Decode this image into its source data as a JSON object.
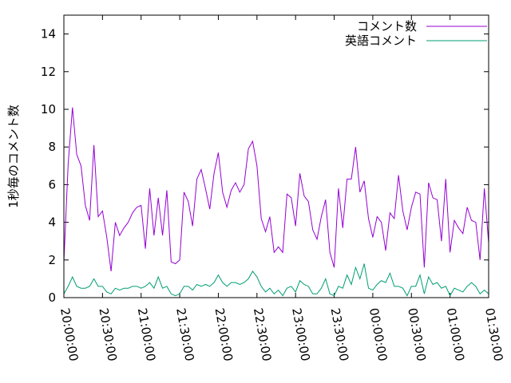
{
  "chart_data": {
    "type": "line",
    "title": "",
    "xlabel": "",
    "ylabel": "1秒毎のコメント数",
    "ylim": [
      0,
      15
    ],
    "xlim": [
      "20:00:00",
      "01:30:00"
    ],
    "yticks": [
      "0",
      "2",
      "4",
      "6",
      "8",
      "10",
      "12",
      "14"
    ],
    "xticks": [
      "20:00:00",
      "20:30:00",
      "21:00:00",
      "21:30:00",
      "22:00:00",
      "22:30:00",
      "23:00:00",
      "23:30:00",
      "00:00:00",
      "00:30:00",
      "01:00:00",
      "01:30:00"
    ],
    "grid": false,
    "legend_position": "top-right",
    "series": [
      {
        "name": "コメント数",
        "color": "#9400d3",
        "values": [
          1.9,
          7.1,
          10.1,
          7.6,
          7.0,
          4.9,
          4.1,
          8.1,
          4.3,
          4.6,
          3.2,
          1.4,
          4.0,
          3.3,
          3.7,
          4.0,
          4.5,
          4.8,
          4.9,
          2.6,
          5.8,
          3.3,
          5.3,
          3.3,
          5.7,
          1.9,
          1.8,
          2.0,
          5.6,
          5.1,
          3.8,
          6.3,
          6.8,
          5.8,
          4.7,
          6.6,
          7.7,
          5.6,
          4.8,
          5.7,
          6.1,
          5.6,
          6.0,
          7.9,
          8.3,
          7.0,
          4.2,
          3.5,
          4.3,
          2.4,
          2.7,
          2.4,
          5.5,
          5.3,
          3.8,
          6.6,
          5.4,
          5.1,
          3.6,
          3.1,
          4.3,
          5.2,
          2.4,
          1.6,
          5.8,
          3.7,
          6.3,
          6.3,
          8.0,
          5.6,
          6.2,
          4.2,
          3.2,
          4.3,
          4.0,
          2.5,
          4.5,
          4.2,
          6.5,
          4.6,
          3.6,
          4.8,
          5.6,
          5.5,
          1.6,
          6.1,
          5.3,
          5.2,
          3.0,
          6.3,
          2.4,
          4.1,
          3.7,
          3.4,
          4.8,
          4.1,
          4.0,
          2.0,
          5.8,
          2.9
        ]
      },
      {
        "name": "英語コメント",
        "color": "#009e73",
        "values": [
          0.2,
          0.6,
          1.1,
          0.6,
          0.5,
          0.5,
          0.6,
          1.0,
          0.6,
          0.6,
          0.3,
          0.2,
          0.5,
          0.4,
          0.5,
          0.5,
          0.6,
          0.6,
          0.5,
          0.6,
          0.8,
          0.5,
          1.1,
          0.5,
          0.6,
          0.2,
          0.1,
          0.2,
          0.6,
          0.6,
          0.4,
          0.7,
          0.6,
          0.7,
          0.6,
          0.8,
          1.2,
          0.8,
          0.6,
          0.8,
          0.8,
          0.7,
          0.8,
          1.0,
          1.4,
          1.1,
          0.6,
          0.3,
          0.5,
          0.2,
          0.4,
          0.1,
          0.5,
          0.6,
          0.3,
          0.9,
          0.7,
          0.6,
          0.2,
          0.2,
          0.5,
          1.0,
          0.2,
          0.1,
          0.6,
          0.5,
          1.2,
          0.7,
          1.6,
          1.0,
          1.8,
          0.5,
          0.4,
          0.7,
          0.9,
          0.8,
          1.3,
          0.6,
          0.6,
          0.5,
          0.1,
          0.6,
          0.6,
          1.2,
          0.2,
          1.1,
          0.7,
          0.8,
          0.5,
          0.6,
          0.1,
          0.5,
          0.4,
          0.3,
          0.6,
          0.8,
          0.6,
          0.2,
          0.4,
          0.2
        ]
      }
    ]
  }
}
